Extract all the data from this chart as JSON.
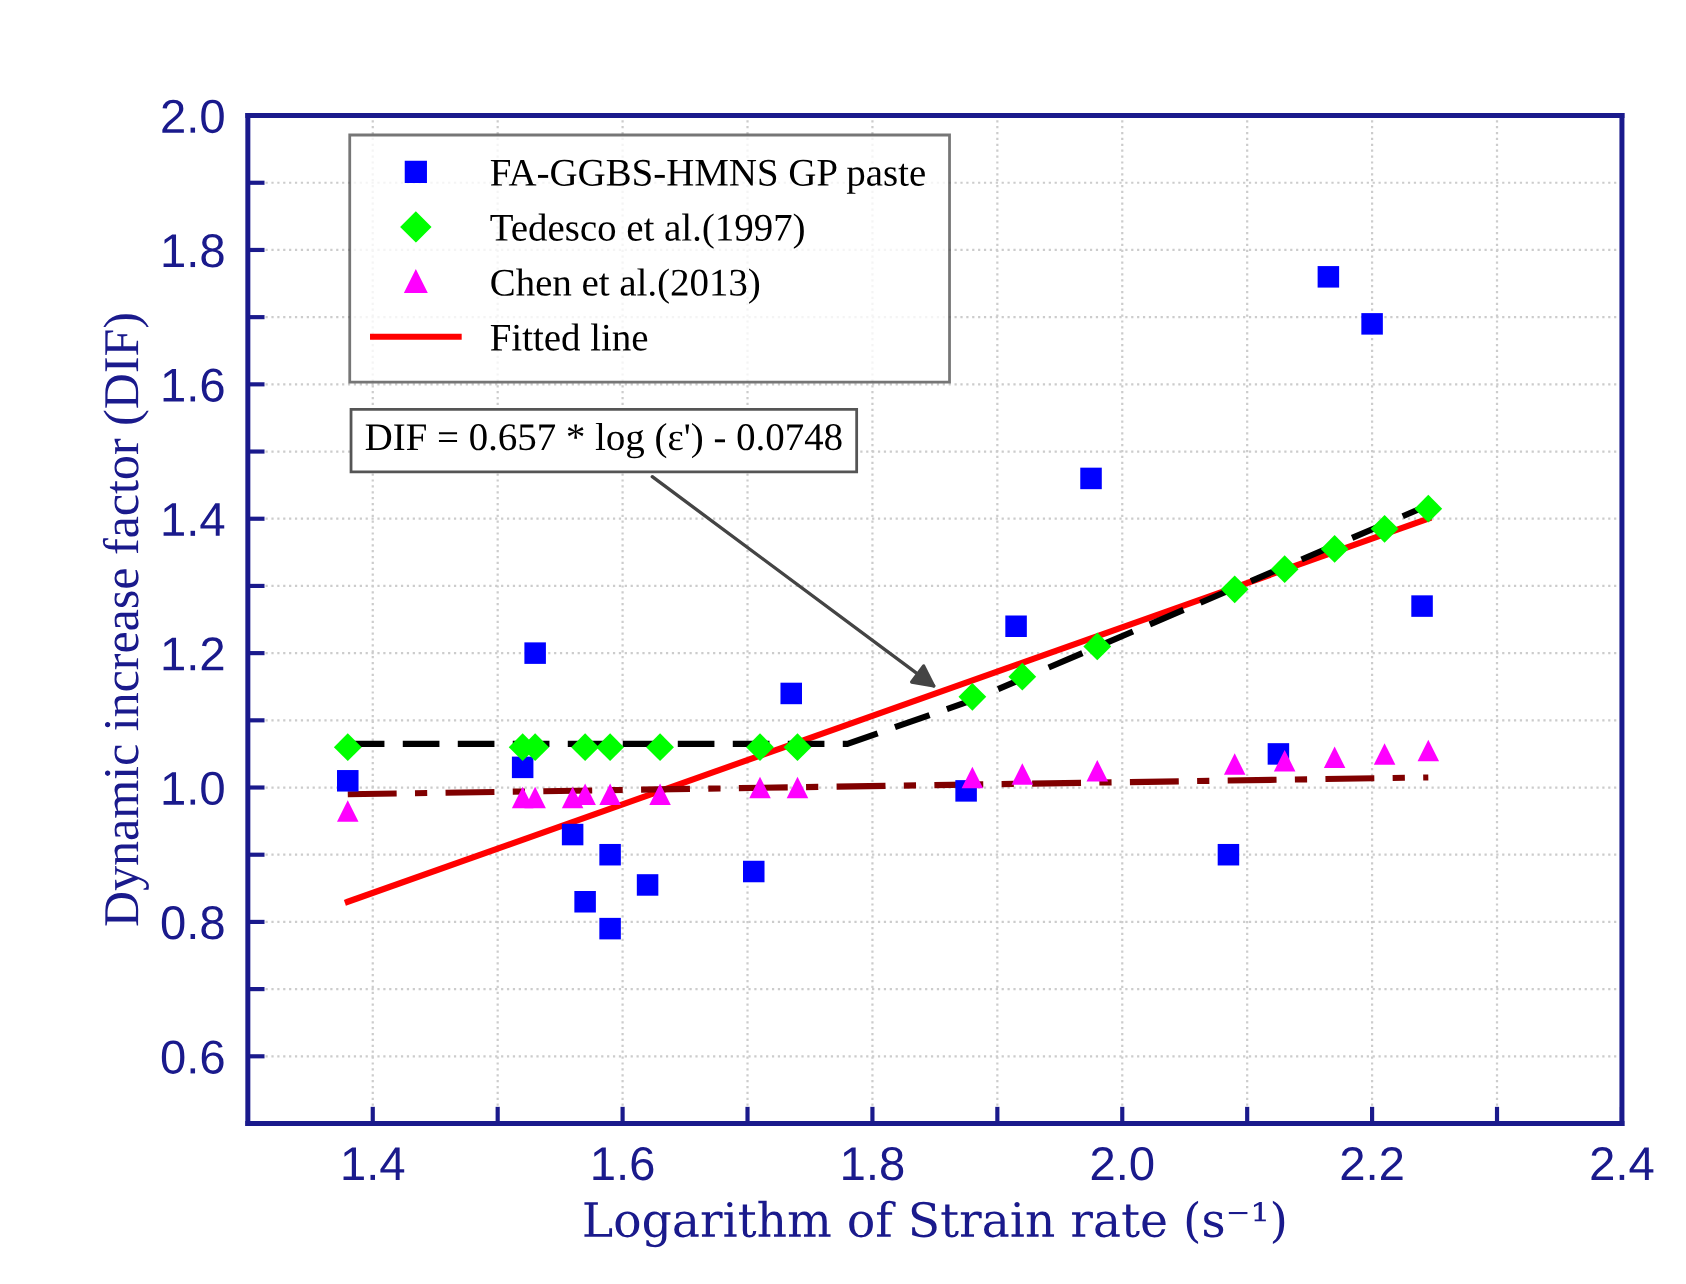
{
  "chart_data": {
    "type": "scatter",
    "xlabel": "Logarithm of Strain rate (s⁻¹)",
    "ylabel": "Dynamic increase factor (DIF)",
    "xlim": [
      1.3,
      2.4
    ],
    "xticks": [
      1.4,
      {
        "value": 1.5,
        "label": null
      },
      1.6,
      {
        "value": 1.7,
        "label": null
      },
      1.8,
      {
        "value": 1.9,
        "label": null
      },
      {
        "value": 2.0,
        "label": "2.0"
      },
      {
        "value": 2.1,
        "label": null
      },
      2.2,
      {
        "value": 2.3,
        "label": null
      },
      2.4
    ],
    "ylim": [
      0.5,
      2.0
    ],
    "yticks": [
      {
        "value": 0.5,
        "label": null
      },
      0.6,
      {
        "value": 0.7,
        "label": null
      },
      0.8,
      {
        "value": 0.9,
        "label": null
      },
      {
        "value": 1.0,
        "label": "1.0"
      },
      {
        "value": 1.1,
        "label": null
      },
      1.2,
      {
        "value": 1.3,
        "label": null
      },
      1.4,
      {
        "value": 1.5,
        "label": null
      },
      1.6,
      {
        "value": 1.7,
        "label": null
      },
      1.8,
      {
        "value": 1.9,
        "label": null
      },
      {
        "value": 2.0,
        "label": "2.0"
      }
    ],
    "grid": true,
    "legend": "top left",
    "annotations": [
      {
        "text": "DIF = 0.657 * log (ε') - 0.0748",
        "x": 1.855,
        "y": 1.143
      }
    ],
    "series": [
      {
        "name": "FA-GGBS-HMNS GP paste",
        "marker": "square",
        "color": "#0000ff",
        "x": [
          1.38,
          1.52,
          1.53,
          1.56,
          1.57,
          1.59,
          1.59,
          1.62,
          1.705,
          1.735,
          1.875,
          1.915,
          1.975,
          2.085,
          2.125,
          2.165,
          2.2,
          2.24
        ],
        "values": [
          1.01,
          1.03,
          1.2,
          0.93,
          0.83,
          0.9,
          0.79,
          0.855,
          0.875,
          1.14,
          0.995,
          1.24,
          1.46,
          0.9,
          1.05,
          1.76,
          1.69,
          1.27
        ]
      },
      {
        "name": "Tedesco et al.(1997)",
        "marker": "diamond",
        "color": "#00ff00",
        "x": [
          1.38,
          1.52,
          1.53,
          1.57,
          1.59,
          1.63,
          1.71,
          1.74,
          1.88,
          1.92,
          1.98,
          2.09,
          2.13,
          2.17,
          2.21,
          2.245
        ],
        "values": [
          1.06,
          1.06,
          1.06,
          1.06,
          1.06,
          1.06,
          1.06,
          1.06,
          1.135,
          1.165,
          1.21,
          1.295,
          1.325,
          1.355,
          1.385,
          1.415
        ]
      },
      {
        "name": "Chen et al.(2013)",
        "marker": "triangle",
        "color": "#ff00ff",
        "x": [
          1.38,
          1.52,
          1.53,
          1.56,
          1.57,
          1.59,
          1.63,
          1.71,
          1.74,
          1.88,
          1.92,
          1.98,
          2.09,
          2.13,
          2.17,
          2.21,
          2.245
        ],
        "values": [
          0.965,
          0.985,
          0.985,
          0.985,
          0.99,
          0.99,
          0.99,
          1.0,
          1.0,
          1.015,
          1.02,
          1.025,
          1.035,
          1.04,
          1.045,
          1.05,
          1.055
        ]
      },
      {
        "name": "Fitted line",
        "type": "line",
        "line_style": "solid",
        "color": "#ff0000",
        "x": [
          1.38,
          2.245
        ],
        "values": [
          0.83,
          1.4
        ]
      },
      {
        "type": "line",
        "line_style": "dashed",
        "color": "#000000",
        "x": [
          1.38,
          1.78,
          1.88,
          2.245
        ],
        "values": [
          1.065,
          1.065,
          1.13,
          1.42
        ]
      },
      {
        "type": "line",
        "line_style": "dashdot",
        "color": "#800000",
        "x": [
          1.38,
          2.245
        ],
        "values": [
          0.99,
          1.015
        ]
      }
    ]
  }
}
